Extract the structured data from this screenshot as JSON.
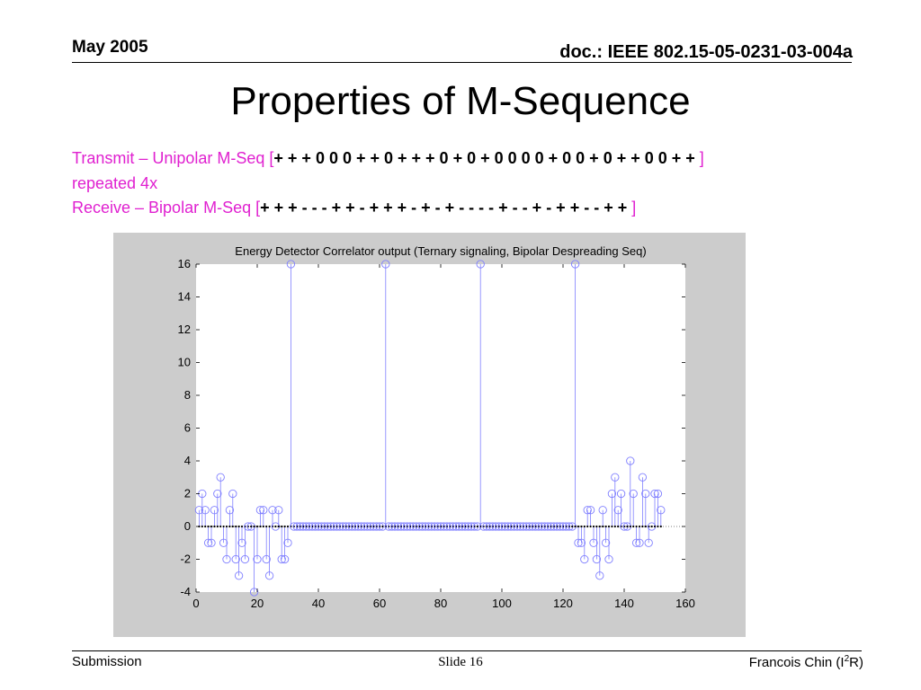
{
  "header": {
    "date": "May 2005",
    "doc": "doc.: IEEE 802.15-05-0231-03-004a"
  },
  "title": "Properties of M-Sequence",
  "body": {
    "line1_prefix": "Transmit – Unipolar M-Seq [",
    "line1_seq": "+ + + 0 0 0 + + 0 + + + 0 + 0 + 0 0 0 0 + 0 0 + 0 + + 0 0 + +",
    "line1_suffix": " ]",
    "line2": "repeated 4x",
    "line3_prefix": "Receive – Bipolar M-Seq [",
    "line3_seq": "+ + + - - - + + - + + + - + - + - - - - + - - + - + + - - + +",
    "line3_suffix": " ]"
  },
  "colors": {
    "accent": "#e020d0",
    "plot_bg": "#cccccc",
    "stem": "#7f7fff"
  },
  "chart_data": {
    "type": "stem",
    "title": "Energy Detector Correlator output (Ternary signaling, Bipolar Despreading Seq)",
    "xlim": [
      0,
      160
    ],
    "ylim": [
      -4,
      16
    ],
    "xticks": [
      0,
      20,
      40,
      60,
      80,
      100,
      120,
      140,
      160
    ],
    "yticks": [
      -4,
      -2,
      0,
      2,
      4,
      6,
      8,
      10,
      12,
      14,
      16
    ],
    "x_start": 1,
    "values": [
      1,
      2,
      1,
      -1,
      -1,
      1,
      2,
      3,
      -1,
      -2,
      1,
      2,
      -2,
      -3,
      -1,
      -2,
      0,
      0,
      -4,
      -2,
      1,
      1,
      -2,
      -3,
      1,
      0,
      1,
      -2,
      -2,
      -1,
      16,
      0,
      0,
      0,
      0,
      0,
      0,
      0,
      0,
      0,
      0,
      0,
      0,
      0,
      0,
      0,
      0,
      0,
      0,
      0,
      0,
      0,
      0,
      0,
      0,
      0,
      0,
      0,
      0,
      0,
      0,
      16,
      0,
      0,
      0,
      0,
      0,
      0,
      0,
      0,
      0,
      0,
      0,
      0,
      0,
      0,
      0,
      0,
      0,
      0,
      0,
      0,
      0,
      0,
      0,
      0,
      0,
      0,
      0,
      0,
      0,
      0,
      16,
      0,
      0,
      0,
      0,
      0,
      0,
      0,
      0,
      0,
      0,
      0,
      0,
      0,
      0,
      0,
      0,
      0,
      0,
      0,
      0,
      0,
      0,
      0,
      0,
      0,
      0,
      0,
      0,
      0,
      0,
      16,
      -1,
      -1,
      -2,
      1,
      1,
      -1,
      -2,
      -3,
      1,
      -1,
      -2,
      2,
      3,
      1,
      2,
      0,
      0,
      4,
      2,
      -1,
      -1,
      3,
      2,
      -1,
      0,
      2,
      2,
      1
    ]
  },
  "footer": {
    "left": "Submission",
    "middle": "Slide 16",
    "right_prefix": "Francois Chin (I",
    "right_sup": "2",
    "right_suffix": "R)"
  }
}
